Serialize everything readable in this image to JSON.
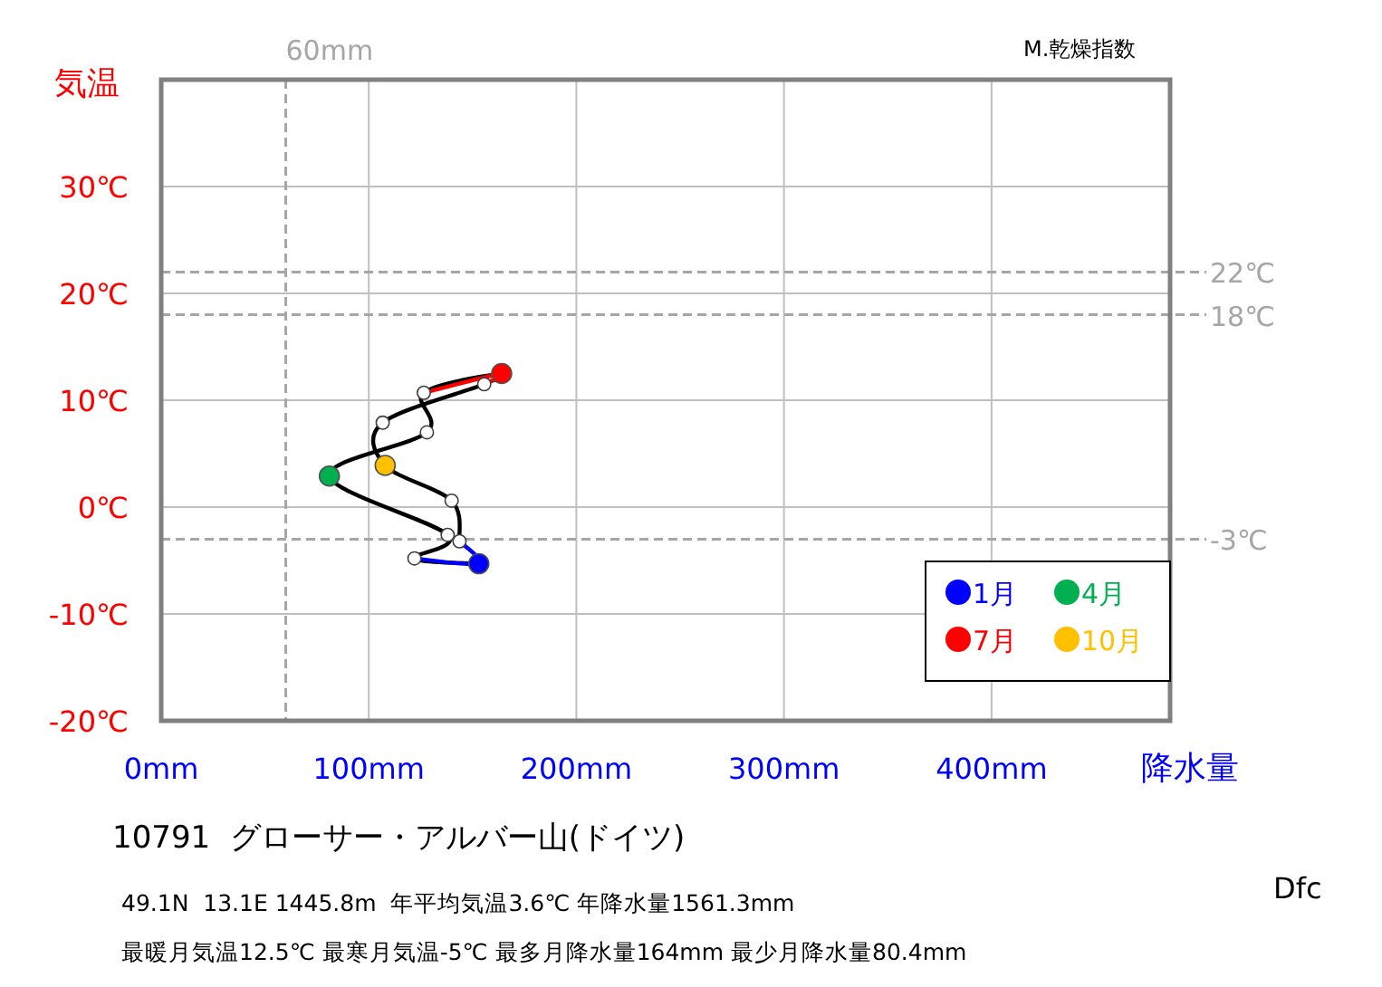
{
  "chart_data": {
    "type": "line",
    "title": "10791  グローサー・アルバー山(ドイツ)",
    "xlabel": "降水量",
    "ylabel": "気温",
    "annotations": [
      "M.乾燥指数",
      "49.1N  13.1E 1445.8m  年平均気温3.6℃ 年降水量1561.3mm",
      "最暖月気温12.5℃ 最寒月気温-5℃ 最多月降水量164mm 最少月降水量80.4mm",
      "Dfc"
    ],
    "xlim": [
      0,
      486
    ],
    "ylim": [
      -20,
      40
    ],
    "xticks": [
      {
        "value": 0,
        "label": "0mm"
      },
      {
        "value": 100,
        "label": "100mm"
      },
      {
        "value": 200,
        "label": "200mm"
      },
      {
        "value": 300,
        "label": "300mm"
      },
      {
        "value": 400,
        "label": "400mm"
      }
    ],
    "yticks": [
      {
        "value": -20,
        "label": "-20℃"
      },
      {
        "value": -10,
        "label": "-10℃"
      },
      {
        "value": 0,
        "label": "0℃"
      },
      {
        "value": 10,
        "label": "10℃"
      },
      {
        "value": 20,
        "label": "20℃"
      },
      {
        "value": 30,
        "label": "30℃"
      },
      {
        "value": 40,
        "label": null
      }
    ],
    "grid": true,
    "legend": "bottom right",
    "ref_lines": [
      {
        "axis": "x",
        "value": 60,
        "label": "60mm",
        "color": "#a6a6a6",
        "line_style": "dashed"
      },
      {
        "axis": "y",
        "value": 22,
        "label": "22℃",
        "color": "#a6a6a6",
        "line_style": "dashed"
      },
      {
        "axis": "y",
        "value": 18,
        "label": "18℃",
        "color": "#a6a6a6",
        "line_style": "dashed"
      },
      {
        "axis": "y",
        "value": -3,
        "label": "-3℃",
        "color": "#a6a6a6",
        "line_style": "dashed"
      }
    ],
    "series": [
      {
        "type": "line",
        "color": "#000000",
        "marker": "circle",
        "x": [
          153,
          122,
          138,
          81,
          128,
          126.5,
          164,
          155.6,
          106.7,
          107.9,
          139.9,
          143.7
        ],
        "values": [
          -5.3,
          -4.8,
          -2.6,
          2.9,
          7.0,
          10.7,
          12.5,
          11.5,
          7.9,
          3.9,
          0.6,
          -3.2
        ],
        "colors": [
          null,
          "#ffffff",
          "#ffffff",
          null,
          "#ffffff",
          "#ffffff",
          null,
          "#ffffff",
          "#ffffff",
          null,
          "#ffffff",
          "#ffffff"
        ]
      },
      {
        "type": "line",
        "color": "#0000ff",
        "marker": "none",
        "x": [
          143.7,
          153,
          122
        ],
        "values": [
          -3.2,
          -5.3,
          -4.8
        ]
      },
      {
        "type": "line",
        "color": "#ff0000",
        "marker": "none",
        "x": [
          126.5,
          164,
          155.6
        ],
        "values": [
          10.7,
          12.5,
          11.5
        ]
      },
      {
        "type": "scatter",
        "name": "1月",
        "color": "#0000ff",
        "x": [
          153
        ],
        "values": [
          -5.3
        ]
      },
      {
        "type": "scatter",
        "name": "4月",
        "color": "#00b050",
        "x": [
          81
        ],
        "values": [
          2.9
        ]
      },
      {
        "type": "scatter",
        "name": "7月",
        "color": "#ff0000",
        "x": [
          164
        ],
        "values": [
          12.5
        ]
      },
      {
        "type": "scatter",
        "name": "10月",
        "color": "#ffc000",
        "x": [
          107.9
        ],
        "values": [
          3.9
        ]
      }
    ]
  }
}
